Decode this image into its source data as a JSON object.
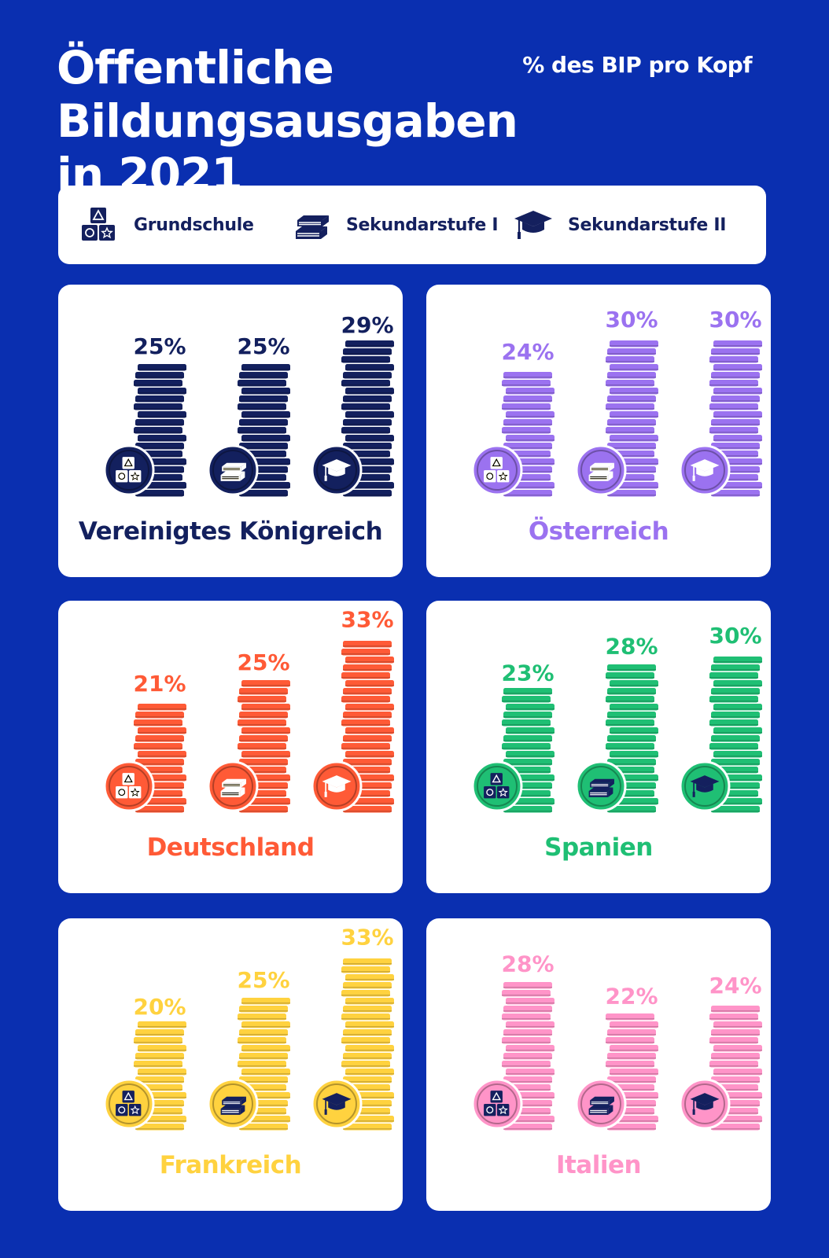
{
  "title": "Öffentliche Bildungsausgaben in 2021",
  "unit_note": "% des BIP pro Kopf",
  "legend": [
    {
      "label": "Grundschule",
      "icon": "blocks-icon"
    },
    {
      "label": "Sekundarstufe I",
      "icon": "books-icon"
    },
    {
      "label": "Sekundarstufe II",
      "icon": "graduation-cap-icon"
    }
  ],
  "colors": {
    "background": "#0a2fb0",
    "uk": "#13205e",
    "austria": "#9b72f0",
    "germany": "#ff5a36",
    "spain": "#1fbf74",
    "france": "#ffd23f",
    "italy": "#ff94c8"
  },
  "chart_data": {
    "type": "bar",
    "categories": [
      "Grundschule",
      "Sekundarstufe I",
      "Sekundarstufe II"
    ],
    "series": [
      {
        "name": "Vereinigtes Königreich",
        "values": [
          25,
          25,
          29
        ],
        "labels": [
          "25%",
          "25%",
          "29%"
        ],
        "color": "#13205e"
      },
      {
        "name": "Österreich",
        "values": [
          24,
          30,
          30
        ],
        "labels": [
          "24%",
          "30%",
          "30%"
        ],
        "color": "#9b72f0"
      },
      {
        "name": "Deutschland",
        "values": [
          21,
          25,
          33
        ],
        "labels": [
          "21%",
          "25%",
          "33%"
        ],
        "color": "#ff5a36"
      },
      {
        "name": "Spanien",
        "values": [
          23,
          28,
          30
        ],
        "labels": [
          "23%",
          "28%",
          "30%"
        ],
        "color": "#1fbf74"
      },
      {
        "name": "Frankreich",
        "values": [
          20,
          25,
          33
        ],
        "labels": [
          "20%",
          "25%",
          "33%"
        ],
        "color": "#ffd23f"
      },
      {
        "name": "Italien",
        "values": [
          28,
          22,
          24
        ],
        "labels": [
          "28%",
          "22%",
          "24%"
        ],
        "color": "#ff94c8"
      }
    ]
  }
}
